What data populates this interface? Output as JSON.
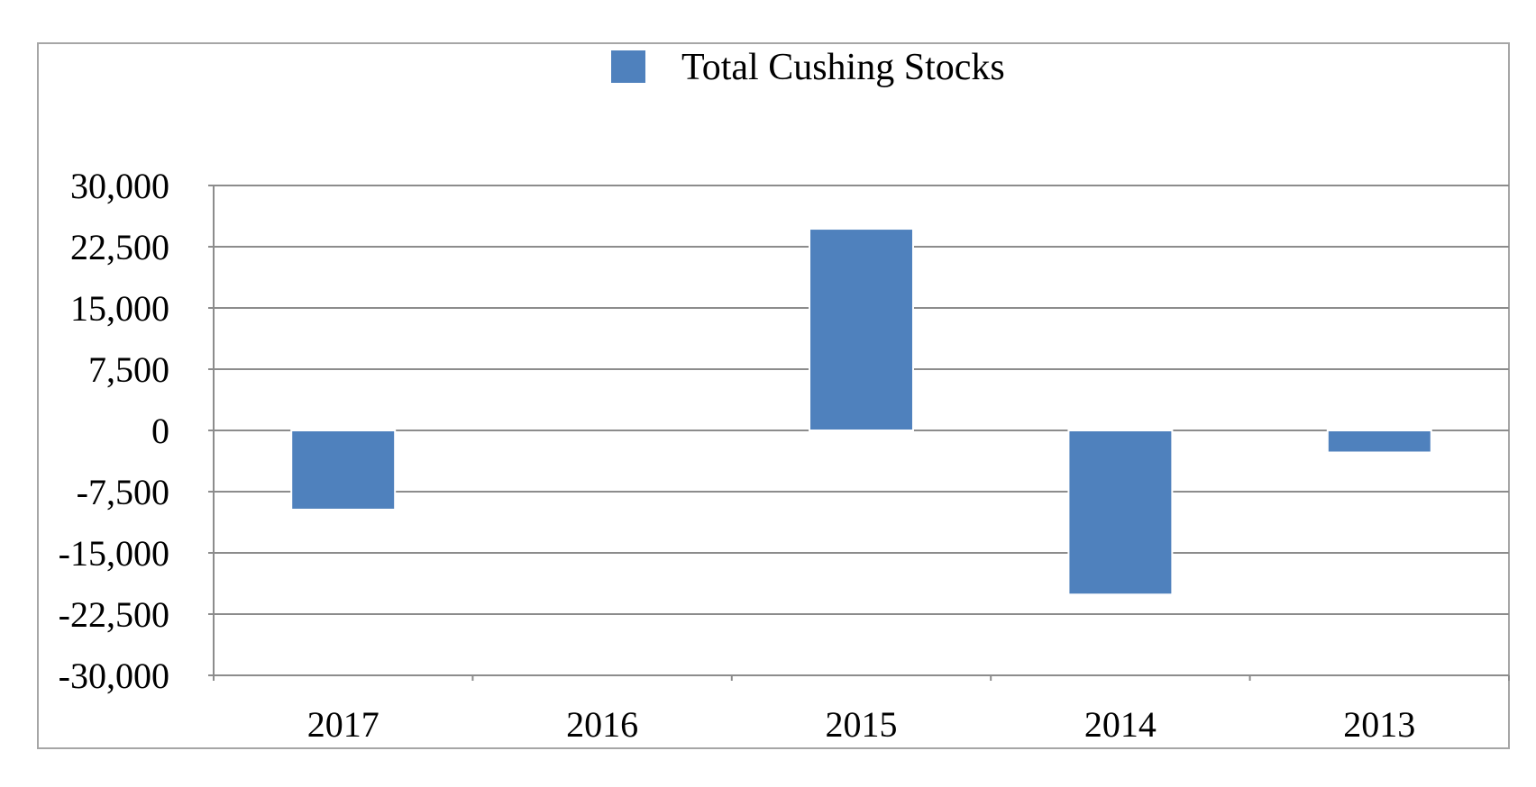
{
  "colors": {
    "bar": "#4f81bd",
    "bar_edge": "#ffffff",
    "grid": "#8c8c8c",
    "axis": "#8c8c8c",
    "frame": "#a6a6a6"
  },
  "chart_data": {
    "type": "bar",
    "categories": [
      "2017",
      "2016",
      "2015",
      "2014",
      "2013"
    ],
    "series": [
      {
        "name": "Total Cushing Stocks",
        "values": [
          -9700,
          0,
          24700,
          -20100,
          -2700
        ]
      }
    ],
    "ylim": [
      -30000,
      30000
    ],
    "yticks": [
      30000,
      22500,
      15000,
      7500,
      0,
      -7500,
      -15000,
      -22500,
      -30000
    ],
    "ytick_labels": [
      "30,000",
      "22,500",
      "15,000",
      "7,500",
      "0",
      "-7,500",
      "-15,000",
      "-22,500",
      "-30,000"
    ],
    "grid": true,
    "legend": "top-center",
    "title": "",
    "xlabel": "",
    "ylabel": ""
  }
}
